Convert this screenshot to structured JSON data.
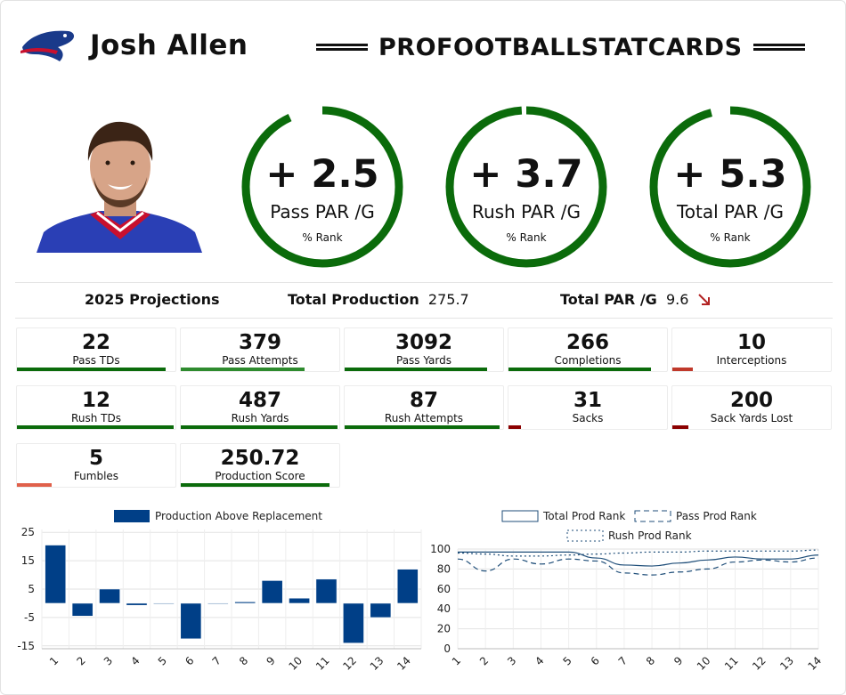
{
  "header": {
    "player_name": "Josh Allen",
    "brand": "PROFOOTBALLSTATCARDS",
    "logo_icon": "bills-logo-icon",
    "colors": {
      "logo_blue": "#1a3a8a",
      "logo_red": "#c8102e"
    }
  },
  "gauges": [
    {
      "value": "+ 2.5",
      "label": "Pass PAR /G",
      "rank_label": "% Rank",
      "fraction": 0.93
    },
    {
      "value": "+ 3.7",
      "label": "Rush PAR /G",
      "rank_label": "% Rank",
      "fraction": 0.99
    },
    {
      "value": "+ 5.3",
      "label": "Total PAR /G",
      "rank_label": "% Rank",
      "fraction": 0.96
    }
  ],
  "gauge_color": "#0b6b0b",
  "summary": {
    "projections_label": "2025 Projections",
    "total_production_label": "Total Production",
    "total_production_value": "275.7",
    "total_par_label": "Total PAR /G",
    "total_par_value": "9.6",
    "trend_icon": "arrow-down-right-icon",
    "trend_color": "#b22222"
  },
  "stats": [
    {
      "value": "22",
      "label": "Pass TDs",
      "fraction": 0.94,
      "color": "#0b6b0b"
    },
    {
      "value": "379",
      "label": "Pass Attempts",
      "fraction": 0.78,
      "color": "#2e8b2e"
    },
    {
      "value": "3092",
      "label": "Pass Yards",
      "fraction": 0.9,
      "color": "#0b6b0b"
    },
    {
      "value": "266",
      "label": "Completions",
      "fraction": 0.9,
      "color": "#0b6b0b"
    },
    {
      "value": "10",
      "label": "Interceptions",
      "fraction": 0.13,
      "color": "#c0392b"
    },
    {
      "value": "12",
      "label": "Rush TDs",
      "fraction": 0.99,
      "color": "#0b6b0b"
    },
    {
      "value": "487",
      "label": "Rush Yards",
      "fraction": 0.99,
      "color": "#0b6b0b"
    },
    {
      "value": "87",
      "label": "Rush Attempts",
      "fraction": 0.98,
      "color": "#0b6b0b"
    },
    {
      "value": "31",
      "label": "Sacks",
      "fraction": 0.08,
      "color": "#8b0000"
    },
    {
      "value": "200",
      "label": "Sack Yards Lost",
      "fraction": 0.1,
      "color": "#8b0000"
    },
    {
      "value": "5",
      "label": "Fumbles",
      "fraction": 0.22,
      "color": "#e0604a"
    },
    {
      "value": "250.72",
      "label": "Production Score",
      "fraction": 0.94,
      "color": "#0b6b0b"
    }
  ],
  "chart_data": [
    {
      "type": "bar",
      "legend": [
        "Production Above Replacement"
      ],
      "categories": [
        "1",
        "2",
        "3",
        "4",
        "5",
        "6",
        "7",
        "8",
        "9",
        "10",
        "11",
        "12",
        "13",
        "14"
      ],
      "series": [
        {
          "name": "Production Above Replacement",
          "values": [
            20.5,
            -4.5,
            5,
            -0.7,
            0,
            -12.5,
            0,
            0.5,
            8,
            1.8,
            8.5,
            -14,
            -5,
            12
          ]
        }
      ],
      "y_ticks": [
        "25",
        "15",
        "5",
        "-5",
        "-15"
      ],
      "ylim": [
        -16,
        26
      ],
      "color": "#003f87",
      "grid": true,
      "legend_position": "top"
    },
    {
      "type": "line",
      "legend": [
        "Total Prod Rank",
        "Pass Prod Rank",
        "Rush Prod Rank"
      ],
      "x": [
        "1",
        "2",
        "3",
        "4",
        "5",
        "6",
        "7",
        "8",
        "9",
        "10",
        "11",
        "12",
        "13",
        "14"
      ],
      "series": [
        {
          "name": "Total Prod Rank",
          "dash": "solid",
          "values": [
            97,
            97,
            97,
            97,
            97,
            91,
            84,
            83,
            86,
            89,
            92,
            90,
            90,
            94
          ]
        },
        {
          "name": "Pass Prod Rank",
          "dash": "dashed",
          "values": [
            90,
            78,
            90,
            85,
            90,
            88,
            76,
            74,
            77,
            80,
            87,
            89,
            87,
            91
          ]
        },
        {
          "name": "Rush Prod Rank",
          "dash": "dotted",
          "values": [
            96,
            95,
            93,
            93,
            94,
            95,
            96,
            97,
            97,
            98,
            98,
            98,
            98,
            99
          ]
        }
      ],
      "y_ticks": [
        "100",
        "80",
        "60",
        "40",
        "20",
        "0"
      ],
      "ylim": [
        0,
        100
      ],
      "color": "#1f4e79",
      "grid": true,
      "legend_position": "top"
    }
  ]
}
